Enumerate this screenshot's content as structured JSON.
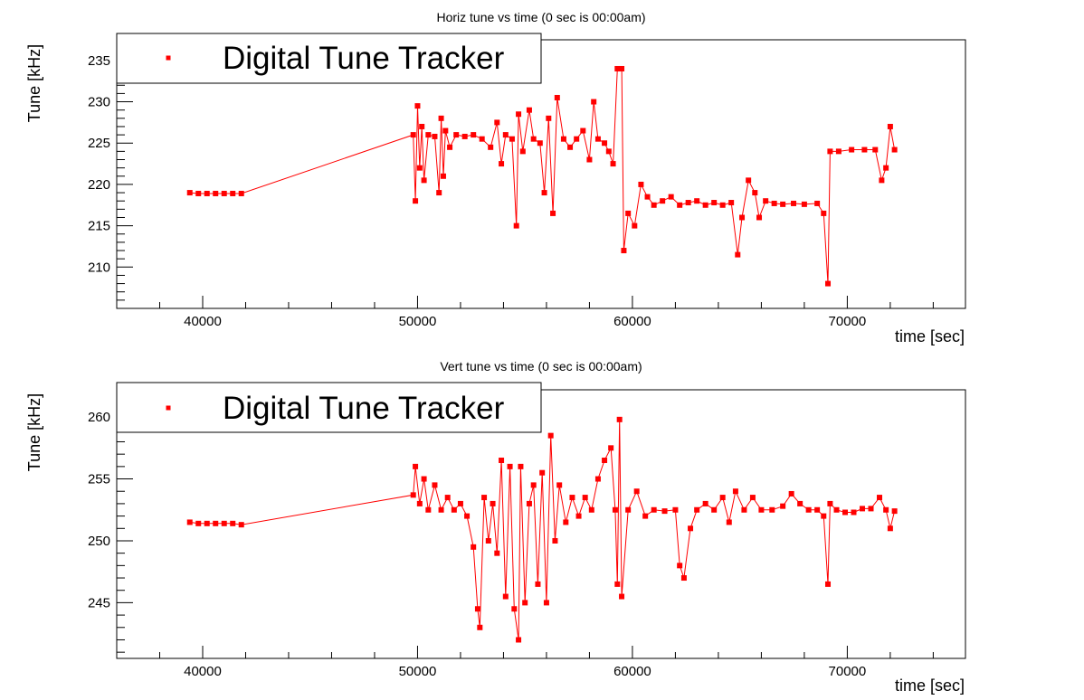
{
  "chart_data": [
    {
      "type": "scatter",
      "title": "Horiz tune vs time (0 sec is 00:00am)",
      "xlabel": "time [sec]",
      "ylabel": "Tune [kHz]",
      "xlim": [
        36000,
        75500
      ],
      "ylim": [
        205,
        237.5
      ],
      "xticks": [
        40000,
        50000,
        60000,
        70000
      ],
      "yticks": [
        210,
        215,
        220,
        225,
        230,
        235
      ],
      "grid": false,
      "legend_position": "top-left",
      "colors": {
        "series": "#ff0000",
        "axes": "#000000",
        "background": "#ffffff"
      },
      "series": [
        {
          "name": "Digital Tune Tracker",
          "points": [
            [
              39400,
              219.0
            ],
            [
              39800,
              218.9
            ],
            [
              40200,
              218.9
            ],
            [
              40600,
              218.9
            ],
            [
              41000,
              218.9
            ],
            [
              41400,
              218.9
            ],
            [
              41800,
              218.9
            ],
            [
              49800,
              226.0
            ],
            [
              49900,
              218.0
            ],
            [
              50000,
              229.5
            ],
            [
              50100,
              222.0
            ],
            [
              50200,
              227.0
            ],
            [
              50300,
              220.5
            ],
            [
              50500,
              226.0
            ],
            [
              50800,
              225.8
            ],
            [
              51000,
              219.0
            ],
            [
              51100,
              228.0
            ],
            [
              51200,
              221.0
            ],
            [
              51300,
              226.5
            ],
            [
              51500,
              224.5
            ],
            [
              51800,
              226.0
            ],
            [
              52200,
              225.8
            ],
            [
              52600,
              226.0
            ],
            [
              53000,
              225.5
            ],
            [
              53400,
              224.5
            ],
            [
              53700,
              227.5
            ],
            [
              53900,
              222.5
            ],
            [
              54100,
              226.0
            ],
            [
              54400,
              225.5
            ],
            [
              54600,
              215.0
            ],
            [
              54700,
              228.5
            ],
            [
              54900,
              224.0
            ],
            [
              55200,
              229.0
            ],
            [
              55400,
              225.5
            ],
            [
              55700,
              225.0
            ],
            [
              55900,
              219.0
            ],
            [
              56100,
              228.0
            ],
            [
              56300,
              216.5
            ],
            [
              56500,
              230.5
            ],
            [
              56800,
              225.5
            ],
            [
              57100,
              224.5
            ],
            [
              57400,
              225.5
            ],
            [
              57700,
              226.5
            ],
            [
              58000,
              223.0
            ],
            [
              58200,
              230.0
            ],
            [
              58400,
              225.5
            ],
            [
              58700,
              225.0
            ],
            [
              58900,
              224.0
            ],
            [
              59100,
              222.5
            ],
            [
              59300,
              234.0
            ],
            [
              59500,
              234.0
            ],
            [
              59600,
              212.0
            ],
            [
              59800,
              216.5
            ],
            [
              60100,
              215.0
            ],
            [
              60400,
              220.0
            ],
            [
              60700,
              218.5
            ],
            [
              61000,
              217.5
            ],
            [
              61400,
              218.0
            ],
            [
              61800,
              218.5
            ],
            [
              62200,
              217.5
            ],
            [
              62600,
              217.8
            ],
            [
              63000,
              218.0
            ],
            [
              63400,
              217.5
            ],
            [
              63800,
              217.8
            ],
            [
              64200,
              217.5
            ],
            [
              64600,
              217.8
            ],
            [
              64900,
              211.5
            ],
            [
              65100,
              216.0
            ],
            [
              65400,
              220.5
            ],
            [
              65700,
              219.0
            ],
            [
              65900,
              216.0
            ],
            [
              66200,
              218.0
            ],
            [
              66600,
              217.7
            ],
            [
              67000,
              217.6
            ],
            [
              67500,
              217.7
            ],
            [
              68000,
              217.6
            ],
            [
              68600,
              217.7
            ],
            [
              68900,
              216.5
            ],
            [
              69100,
              208.0
            ],
            [
              69200,
              224.0
            ],
            [
              69600,
              224.0
            ],
            [
              70200,
              224.2
            ],
            [
              70800,
              224.2
            ],
            [
              71300,
              224.2
            ],
            [
              71600,
              220.5
            ],
            [
              71800,
              222.0
            ],
            [
              72000,
              227.0
            ],
            [
              72200,
              224.2
            ]
          ]
        }
      ]
    },
    {
      "type": "scatter",
      "title": "Vert tune vs time (0 sec is 00:00am)",
      "xlabel": "time [sec]",
      "ylabel": "Tune [kHz]",
      "xlim": [
        36000,
        75500
      ],
      "ylim": [
        240.5,
        262.2
      ],
      "xticks": [
        40000,
        50000,
        60000,
        70000
      ],
      "yticks": [
        245,
        250,
        255,
        260
      ],
      "grid": false,
      "legend_position": "top-left",
      "colors": {
        "series": "#ff0000",
        "axes": "#000000",
        "background": "#ffffff"
      },
      "series": [
        {
          "name": "Digital Tune Tracker",
          "points": [
            [
              39400,
              251.5
            ],
            [
              39800,
              251.4
            ],
            [
              40200,
              251.4
            ],
            [
              40600,
              251.4
            ],
            [
              41000,
              251.4
            ],
            [
              41400,
              251.4
            ],
            [
              41800,
              251.3
            ],
            [
              49800,
              253.7
            ],
            [
              49900,
              256.0
            ],
            [
              50100,
              253.0
            ],
            [
              50300,
              255.0
            ],
            [
              50500,
              252.5
            ],
            [
              50800,
              254.5
            ],
            [
              51100,
              252.5
            ],
            [
              51400,
              253.5
            ],
            [
              51700,
              252.5
            ],
            [
              52000,
              253.0
            ],
            [
              52300,
              252.0
            ],
            [
              52600,
              249.5
            ],
            [
              52800,
              244.5
            ],
            [
              52900,
              243.0
            ],
            [
              53100,
              253.5
            ],
            [
              53300,
              250.0
            ],
            [
              53500,
              253.0
            ],
            [
              53700,
              249.0
            ],
            [
              53900,
              256.5
            ],
            [
              54100,
              245.5
            ],
            [
              54300,
              256.0
            ],
            [
              54500,
              244.5
            ],
            [
              54700,
              242.0
            ],
            [
              54800,
              256.0
            ],
            [
              55000,
              245.0
            ],
            [
              55200,
              253.0
            ],
            [
              55400,
              254.5
            ],
            [
              55600,
              246.5
            ],
            [
              55800,
              255.5
            ],
            [
              56000,
              245.0
            ],
            [
              56200,
              258.5
            ],
            [
              56400,
              250.0
            ],
            [
              56600,
              254.5
            ],
            [
              56900,
              251.5
            ],
            [
              57200,
              253.5
            ],
            [
              57500,
              252.0
            ],
            [
              57800,
              253.5
            ],
            [
              58100,
              252.5
            ],
            [
              58400,
              255.0
            ],
            [
              58700,
              256.5
            ],
            [
              59000,
              257.5
            ],
            [
              59200,
              252.5
            ],
            [
              59300,
              246.5
            ],
            [
              59400,
              259.8
            ],
            [
              59500,
              245.5
            ],
            [
              59800,
              252.5
            ],
            [
              60200,
              254.0
            ],
            [
              60600,
              252.0
            ],
            [
              61000,
              252.5
            ],
            [
              61500,
              252.4
            ],
            [
              62000,
              252.5
            ],
            [
              62200,
              248.0
            ],
            [
              62400,
              247.0
            ],
            [
              62700,
              251.0
            ],
            [
              63000,
              252.5
            ],
            [
              63400,
              253.0
            ],
            [
              63800,
              252.5
            ],
            [
              64200,
              253.5
            ],
            [
              64500,
              251.5
            ],
            [
              64800,
              254.0
            ],
            [
              65200,
              252.5
            ],
            [
              65600,
              253.5
            ],
            [
              66000,
              252.5
            ],
            [
              66500,
              252.5
            ],
            [
              67000,
              252.8
            ],
            [
              67400,
              253.8
            ],
            [
              67800,
              253.0
            ],
            [
              68200,
              252.5
            ],
            [
              68600,
              252.5
            ],
            [
              68900,
              252.0
            ],
            [
              69100,
              246.5
            ],
            [
              69200,
              253.0
            ],
            [
              69500,
              252.5
            ],
            [
              69900,
              252.3
            ],
            [
              70300,
              252.3
            ],
            [
              70700,
              252.6
            ],
            [
              71100,
              252.6
            ],
            [
              71500,
              253.5
            ],
            [
              71800,
              252.5
            ],
            [
              72000,
              251.0
            ],
            [
              72200,
              252.4
            ]
          ]
        }
      ]
    }
  ]
}
